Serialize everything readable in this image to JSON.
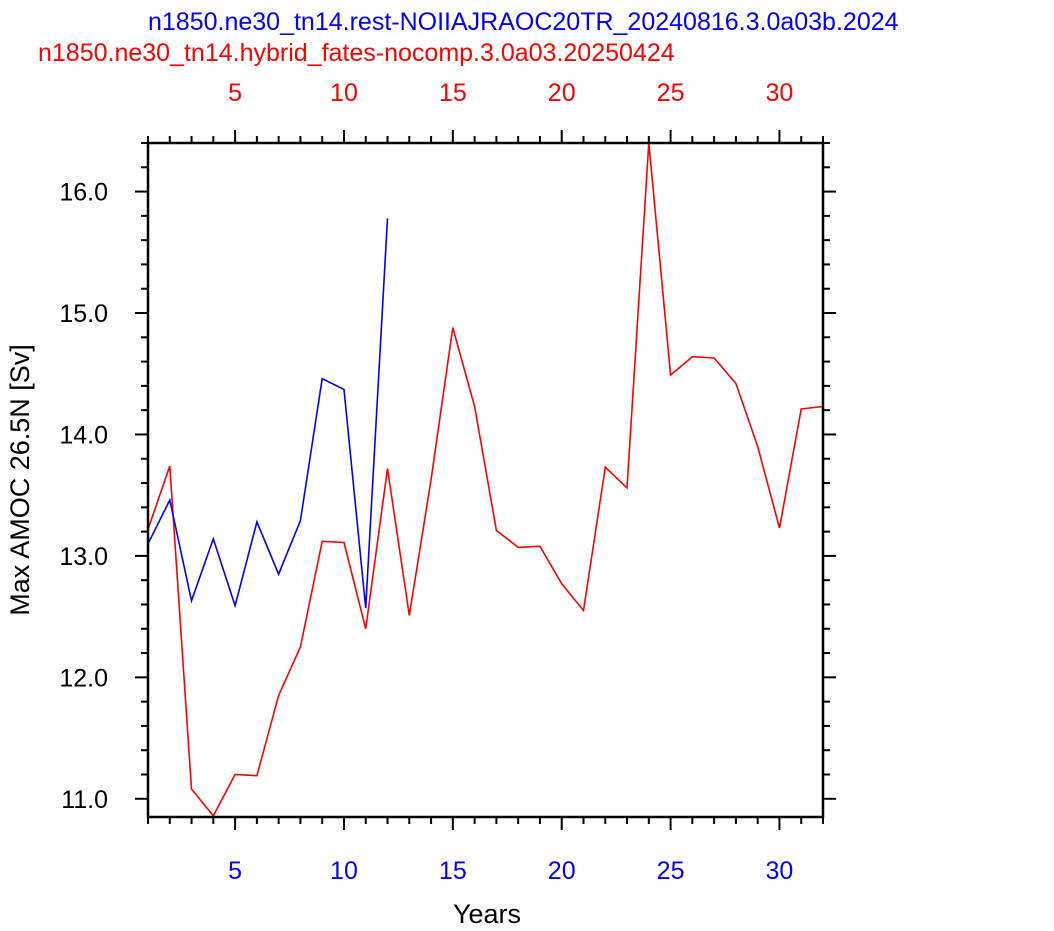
{
  "chart_data": {
    "type": "line",
    "titles": [
      {
        "text": "n1850.ne30_tn14.rest-NOIIAJRAOC20TR_20240816.3.0a03b.2024",
        "color": "#0000ff"
      },
      {
        "text": "n1850.ne30_tn14.hybrid_fates-nocomp.3.0a03.20250424",
        "color": "#ff0000"
      }
    ],
    "xlabel": "Years",
    "ylabel": "Max AMOC 26.5N [Sv]",
    "xlim": [
      1,
      32
    ],
    "ylim": [
      10.85,
      16.4
    ],
    "x_ticks": [
      5,
      10,
      15,
      20,
      25,
      30
    ],
    "x_tick_labels": [
      "5",
      "10",
      "15",
      "20",
      "25",
      "30"
    ],
    "top_x_ticks": [
      5,
      10,
      15,
      20,
      25,
      30
    ],
    "top_x_tick_labels": [
      "5",
      "10",
      "15",
      "20",
      "25",
      "30"
    ],
    "y_ticks": [
      11.0,
      12.0,
      13.0,
      14.0,
      15.0,
      16.0
    ],
    "y_tick_labels": [
      "11.0",
      "12.0",
      "13.0",
      "14.0",
      "15.0",
      "16.0"
    ],
    "bottom_axis_color": "#0000ff",
    "top_axis_color": "#ff0000",
    "grid": false,
    "series": [
      {
        "color": "#0000ff",
        "x": [
          1,
          2,
          3,
          4,
          5,
          6,
          7,
          8,
          9,
          10,
          11,
          12
        ],
        "values": [
          13.1,
          13.46,
          12.63,
          13.14,
          12.59,
          13.28,
          12.85,
          13.29,
          14.46,
          14.37,
          12.57,
          15.78
        ]
      },
      {
        "color": "#ff0000",
        "x": [
          1,
          2,
          3,
          4,
          5,
          6,
          7,
          8,
          9,
          10,
          11,
          12,
          13,
          14,
          15,
          16,
          17,
          18,
          19,
          20,
          21,
          22,
          23,
          24,
          25,
          26,
          27,
          28,
          29,
          30,
          31,
          32
        ],
        "values": [
          13.22,
          13.74,
          11.08,
          10.86,
          11.2,
          11.19,
          11.85,
          12.25,
          13.12,
          13.11,
          12.4,
          13.72,
          12.51,
          13.63,
          14.88,
          14.23,
          13.21,
          13.07,
          13.08,
          12.77,
          12.55,
          13.73,
          13.56,
          16.4,
          14.49,
          14.64,
          14.63,
          14.42,
          13.9,
          13.23,
          14.21,
          14.23
        ]
      }
    ]
  }
}
